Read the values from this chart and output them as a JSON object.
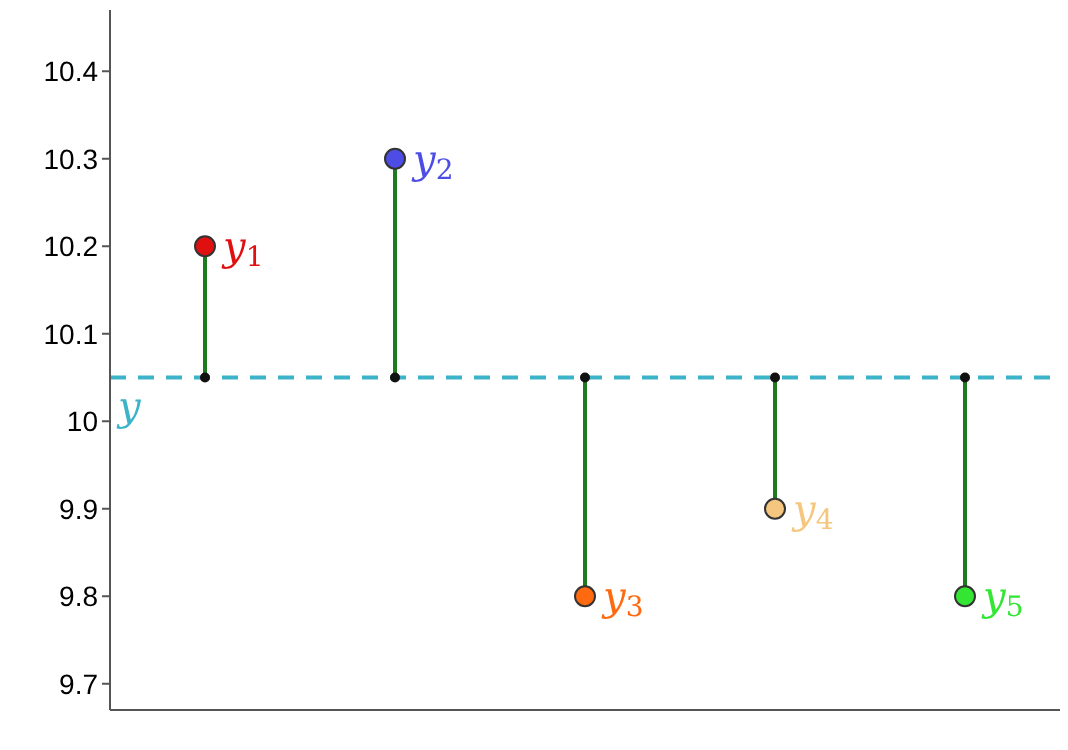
{
  "chart_data": {
    "type": "lollipop",
    "categories": [
      null,
      null,
      null,
      null,
      null
    ],
    "values": [
      10.2,
      10.3,
      9.8,
      9.9,
      9.8
    ],
    "colors": [
      "#e01010",
      "#4d4de6",
      "#ff6a10",
      "#f5c77e",
      "#33e633"
    ],
    "color": "#1e7a1e",
    "annotations": [
      "y$_{1}$",
      "y$_{2}$",
      "y$_{3}$",
      "y$_{4}$",
      "y$_{5}$"
    ],
    "ref_lines": [
      {
        "axis": "y",
        "value": 10.05,
        "label": "y",
        "color": "#3db3c9",
        "line_style": "dashed"
      }
    ],
    "ylim": [
      9.67,
      10.47
    ],
    "yticks": [
      9.7,
      9.8,
      9.9,
      10,
      10.1,
      10.2,
      10.3,
      10.4
    ],
    "tick_labels": "y",
    "marker": "circle",
    "grid": false,
    "legend": false
  }
}
